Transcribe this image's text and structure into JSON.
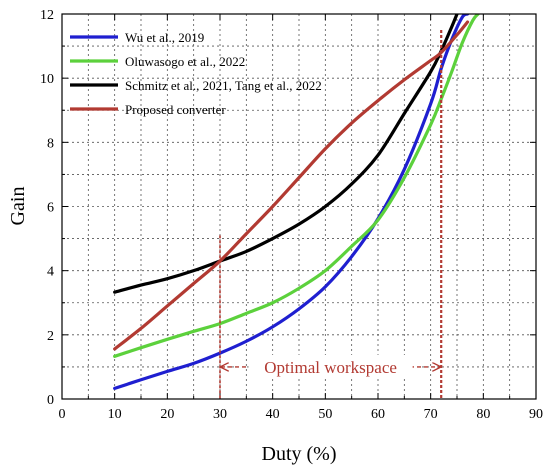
{
  "chart_data": {
    "type": "line",
    "xlabel": "Duty (%)",
    "ylabel": "Gain",
    "xlim": [
      0,
      90
    ],
    "ylim": [
      0,
      12
    ],
    "xticks": [
      0,
      10,
      20,
      30,
      40,
      50,
      60,
      70,
      80,
      90
    ],
    "yticks": [
      0,
      2,
      4,
      6,
      8,
      10,
      12
    ],
    "grid": true,
    "legend_position": "top-left",
    "series": [
      {
        "name": "Wu et al., 2019",
        "color": "#1f1fd0",
        "x": [
          10,
          15,
          20,
          25,
          30,
          35,
          40,
          45,
          50,
          55,
          60,
          65,
          70,
          72,
          74,
          76,
          77
        ],
        "y": [
          0.33,
          0.6,
          0.86,
          1.11,
          1.43,
          1.8,
          2.25,
          2.81,
          3.5,
          4.44,
          5.62,
          7.16,
          9.2,
          10.3,
          11.2,
          11.9,
          12.0
        ]
      },
      {
        "name": "Oluwasogo et al., 2022",
        "color": "#5cd13c",
        "x": [
          10,
          15,
          20,
          25,
          30,
          35,
          40,
          45,
          50,
          55,
          60,
          65,
          70,
          72,
          74,
          76,
          78,
          79
        ],
        "y": [
          1.33,
          1.6,
          1.86,
          2.11,
          2.35,
          2.67,
          3.0,
          3.45,
          4.0,
          4.76,
          5.58,
          6.9,
          8.55,
          9.35,
          10.2,
          11.1,
          11.8,
          12.0
        ]
      },
      {
        "name": "Schmitz et al., 2021, Tang et al., 2022",
        "color": "#000000",
        "x": [
          10,
          15,
          20,
          25,
          30,
          35,
          40,
          45,
          50,
          55,
          60,
          65,
          70,
          72,
          74,
          75
        ],
        "y": [
          3.33,
          3.55,
          3.75,
          4.0,
          4.3,
          4.6,
          5.0,
          5.45,
          6.0,
          6.7,
          7.6,
          8.9,
          10.2,
          10.85,
          11.6,
          12.0
        ]
      },
      {
        "name": "Proposed converter",
        "color": "#b23a32",
        "x": [
          10,
          15,
          20,
          25,
          30,
          35,
          40,
          45,
          50,
          55,
          60,
          65,
          70,
          72,
          75,
          77
        ],
        "y": [
          1.56,
          2.2,
          2.9,
          3.6,
          4.3,
          5.15,
          6.0,
          6.9,
          7.8,
          8.6,
          9.3,
          9.95,
          10.55,
          10.8,
          11.35,
          11.75
        ]
      }
    ],
    "annotations": {
      "optimal_text": "Optimal workspace",
      "color": "#b23a32",
      "x_start": 30,
      "x_end": 72,
      "marker_y_start": 4.3,
      "marker_y_end": 10.8,
      "arrow_y": 1.0
    }
  }
}
